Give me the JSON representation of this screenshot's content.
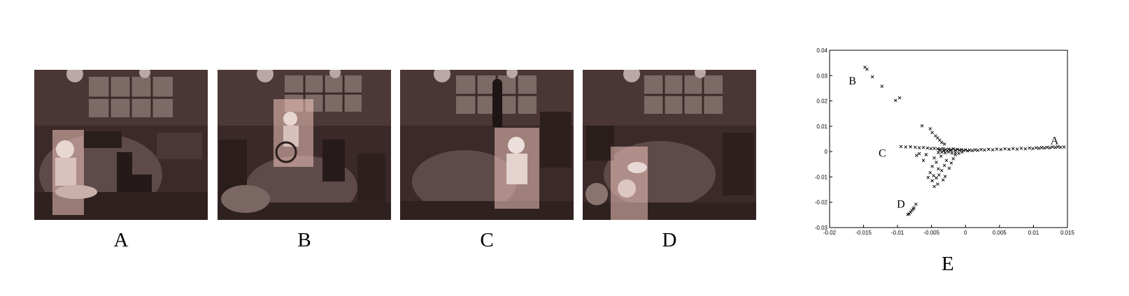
{
  "panels": [
    {
      "label": "A",
      "scene": "person seated at left of round table",
      "highlight_color": "#f2c6bd"
    },
    {
      "label": "B",
      "scene": "person in wheelchair in background",
      "highlight_color": "#f2c6bd"
    },
    {
      "label": "C",
      "scene": "person standing at right of table",
      "highlight_color": "#f2c6bd"
    },
    {
      "label": "D",
      "scene": "person seated at left foreground",
      "highlight_color": "#f2c6bd"
    }
  ],
  "figure_label": "E",
  "chart_data": {
    "type": "scatter",
    "marker": "x",
    "xlim": [
      -0.02,
      0.015
    ],
    "ylim": [
      -0.03,
      0.04
    ],
    "x_ticks": [
      "-0.02",
      "-0.015",
      "-0.01",
      "-0.005",
      "0",
      "0.005",
      "0.01",
      "0.015"
    ],
    "y_ticks": [
      "0.04",
      "0.03",
      "0.02",
      "0.01",
      "0",
      "-0.01",
      "-0.02",
      "-0.03"
    ],
    "annotations": [
      {
        "text": "A",
        "x": 0.0125,
        "y": 0.003
      },
      {
        "text": "B",
        "x": -0.0172,
        "y": 0.0265
      },
      {
        "text": "C",
        "x": -0.0128,
        "y": -0.002
      },
      {
        "text": "D",
        "x": -0.0101,
        "y": -0.0222
      }
    ],
    "points": [
      [
        -0.0148,
        0.0333
      ],
      [
        -0.0145,
        0.0325
      ],
      [
        -0.0137,
        0.0295
      ],
      [
        -0.0123,
        0.0258
      ],
      [
        -0.0103,
        0.0202
      ],
      [
        -0.0097,
        0.0212
      ],
      [
        -0.0095,
        0.002
      ],
      [
        -0.0088,
        0.0018
      ],
      [
        -0.0081,
        0.0019
      ],
      [
        -0.0074,
        0.0017
      ],
      [
        -0.0068,
        0.0015
      ],
      [
        -0.0062,
        0.0016
      ],
      [
        -0.0056,
        0.0014
      ],
      [
        -0.0051,
        0.0012
      ],
      [
        -0.0046,
        0.0013
      ],
      [
        -0.0041,
        0.0011
      ],
      [
        -0.0037,
        0.001
      ],
      [
        -0.0033,
        0.0012
      ],
      [
        -0.0029,
        0.0008
      ],
      [
        -0.0025,
        0.001
      ],
      [
        -0.0021,
        0.0007
      ],
      [
        -0.0018,
        0.0011
      ],
      [
        -0.0015,
        0.0006
      ],
      [
        -0.0012,
        0.0009
      ],
      [
        -0.0009,
        0.0005
      ],
      [
        -0.0006,
        0.0008
      ],
      [
        -0.0003,
        0.0004
      ],
      [
        0.0,
        0.0007
      ],
      [
        0.0003,
        0.0003
      ],
      [
        0.0006,
        0.0006
      ],
      [
        0.001,
        0.0004
      ],
      [
        0.0014,
        0.0007
      ],
      [
        0.0018,
        0.0005
      ],
      [
        0.0023,
        0.0008
      ],
      [
        0.0028,
        0.0006
      ],
      [
        0.0034,
        0.0009
      ],
      [
        0.004,
        0.0007
      ],
      [
        0.0046,
        0.001
      ],
      [
        0.0052,
        0.0008
      ],
      [
        0.0058,
        0.0011
      ],
      [
        0.0064,
        0.0009
      ],
      [
        0.007,
        0.0012
      ],
      [
        0.0076,
        0.001
      ],
      [
        0.0082,
        0.0013
      ],
      [
        0.0088,
        0.0011
      ],
      [
        0.0094,
        0.0014
      ],
      [
        0.0099,
        0.0012
      ],
      [
        0.0104,
        0.0015
      ],
      [
        0.0108,
        0.0013
      ],
      [
        0.0112,
        0.0016
      ],
      [
        0.0116,
        0.0014
      ],
      [
        0.012,
        0.0017
      ],
      [
        0.0124,
        0.0015
      ],
      [
        0.0128,
        0.0018
      ],
      [
        0.0132,
        0.0016
      ],
      [
        0.0136,
        0.0019
      ],
      [
        0.014,
        0.0017
      ],
      [
        0.0145,
        0.0018
      ],
      [
        -0.004,
        -0.0004
      ],
      [
        -0.0035,
        -0.0002
      ],
      [
        -0.003,
        -0.0005
      ],
      [
        -0.0025,
        -0.0001
      ],
      [
        -0.002,
        -0.0006
      ],
      [
        -0.0015,
        -0.0003
      ],
      [
        -0.001,
        -0.0007
      ],
      [
        -0.0005,
        -0.0002
      ],
      [
        -0.0038,
        0.0006
      ],
      [
        -0.0032,
        0.0004
      ],
      [
        -0.0027,
        0.0003
      ],
      [
        -0.0022,
        0.0005
      ],
      [
        -0.0064,
        0.0102
      ],
      [
        -0.0052,
        0.009
      ],
      [
        -0.0049,
        0.0075
      ],
      [
        -0.0044,
        0.0062
      ],
      [
        -0.0041,
        0.0054
      ],
      [
        -0.0038,
        0.0045
      ],
      [
        -0.0035,
        0.0036
      ],
      [
        -0.0031,
        0.003
      ],
      [
        -0.0046,
        -0.0025
      ],
      [
        -0.0043,
        -0.0042
      ],
      [
        -0.0049,
        -0.0058
      ],
      [
        -0.004,
        -0.0068
      ],
      [
        -0.0052,
        -0.0083
      ],
      [
        -0.0047,
        -0.0095
      ],
      [
        -0.0043,
        -0.0104
      ],
      [
        -0.0049,
        -0.0115
      ],
      [
        -0.0041,
        -0.0128
      ],
      [
        -0.0046,
        -0.0138
      ],
      [
        -0.0039,
        -0.0092
      ],
      [
        -0.0035,
        -0.0075
      ],
      [
        -0.0031,
        -0.0055
      ],
      [
        -0.0028,
        -0.0035
      ],
      [
        -0.0036,
        -0.0018
      ],
      [
        -0.0055,
        -0.0102
      ],
      [
        -0.0058,
        -0.0012
      ],
      [
        -0.0062,
        -0.0035
      ],
      [
        -0.0068,
        -0.0008
      ],
      [
        -0.0072,
        -0.0015
      ],
      [
        -0.0021,
        -0.0045
      ],
      [
        -0.0018,
        -0.0028
      ],
      [
        -0.0024,
        -0.0066
      ],
      [
        -0.0015,
        -0.0012
      ],
      [
        -0.0033,
        -0.0112
      ],
      [
        -0.003,
        -0.0098
      ],
      [
        -0.0073,
        -0.0208
      ],
      [
        -0.0076,
        -0.0222
      ],
      [
        -0.0079,
        -0.0232
      ],
      [
        -0.0081,
        -0.024
      ],
      [
        -0.0083,
        -0.0246
      ],
      [
        -0.0085,
        -0.0248
      ],
      [
        -0.0077,
        -0.0227
      ]
    ]
  }
}
